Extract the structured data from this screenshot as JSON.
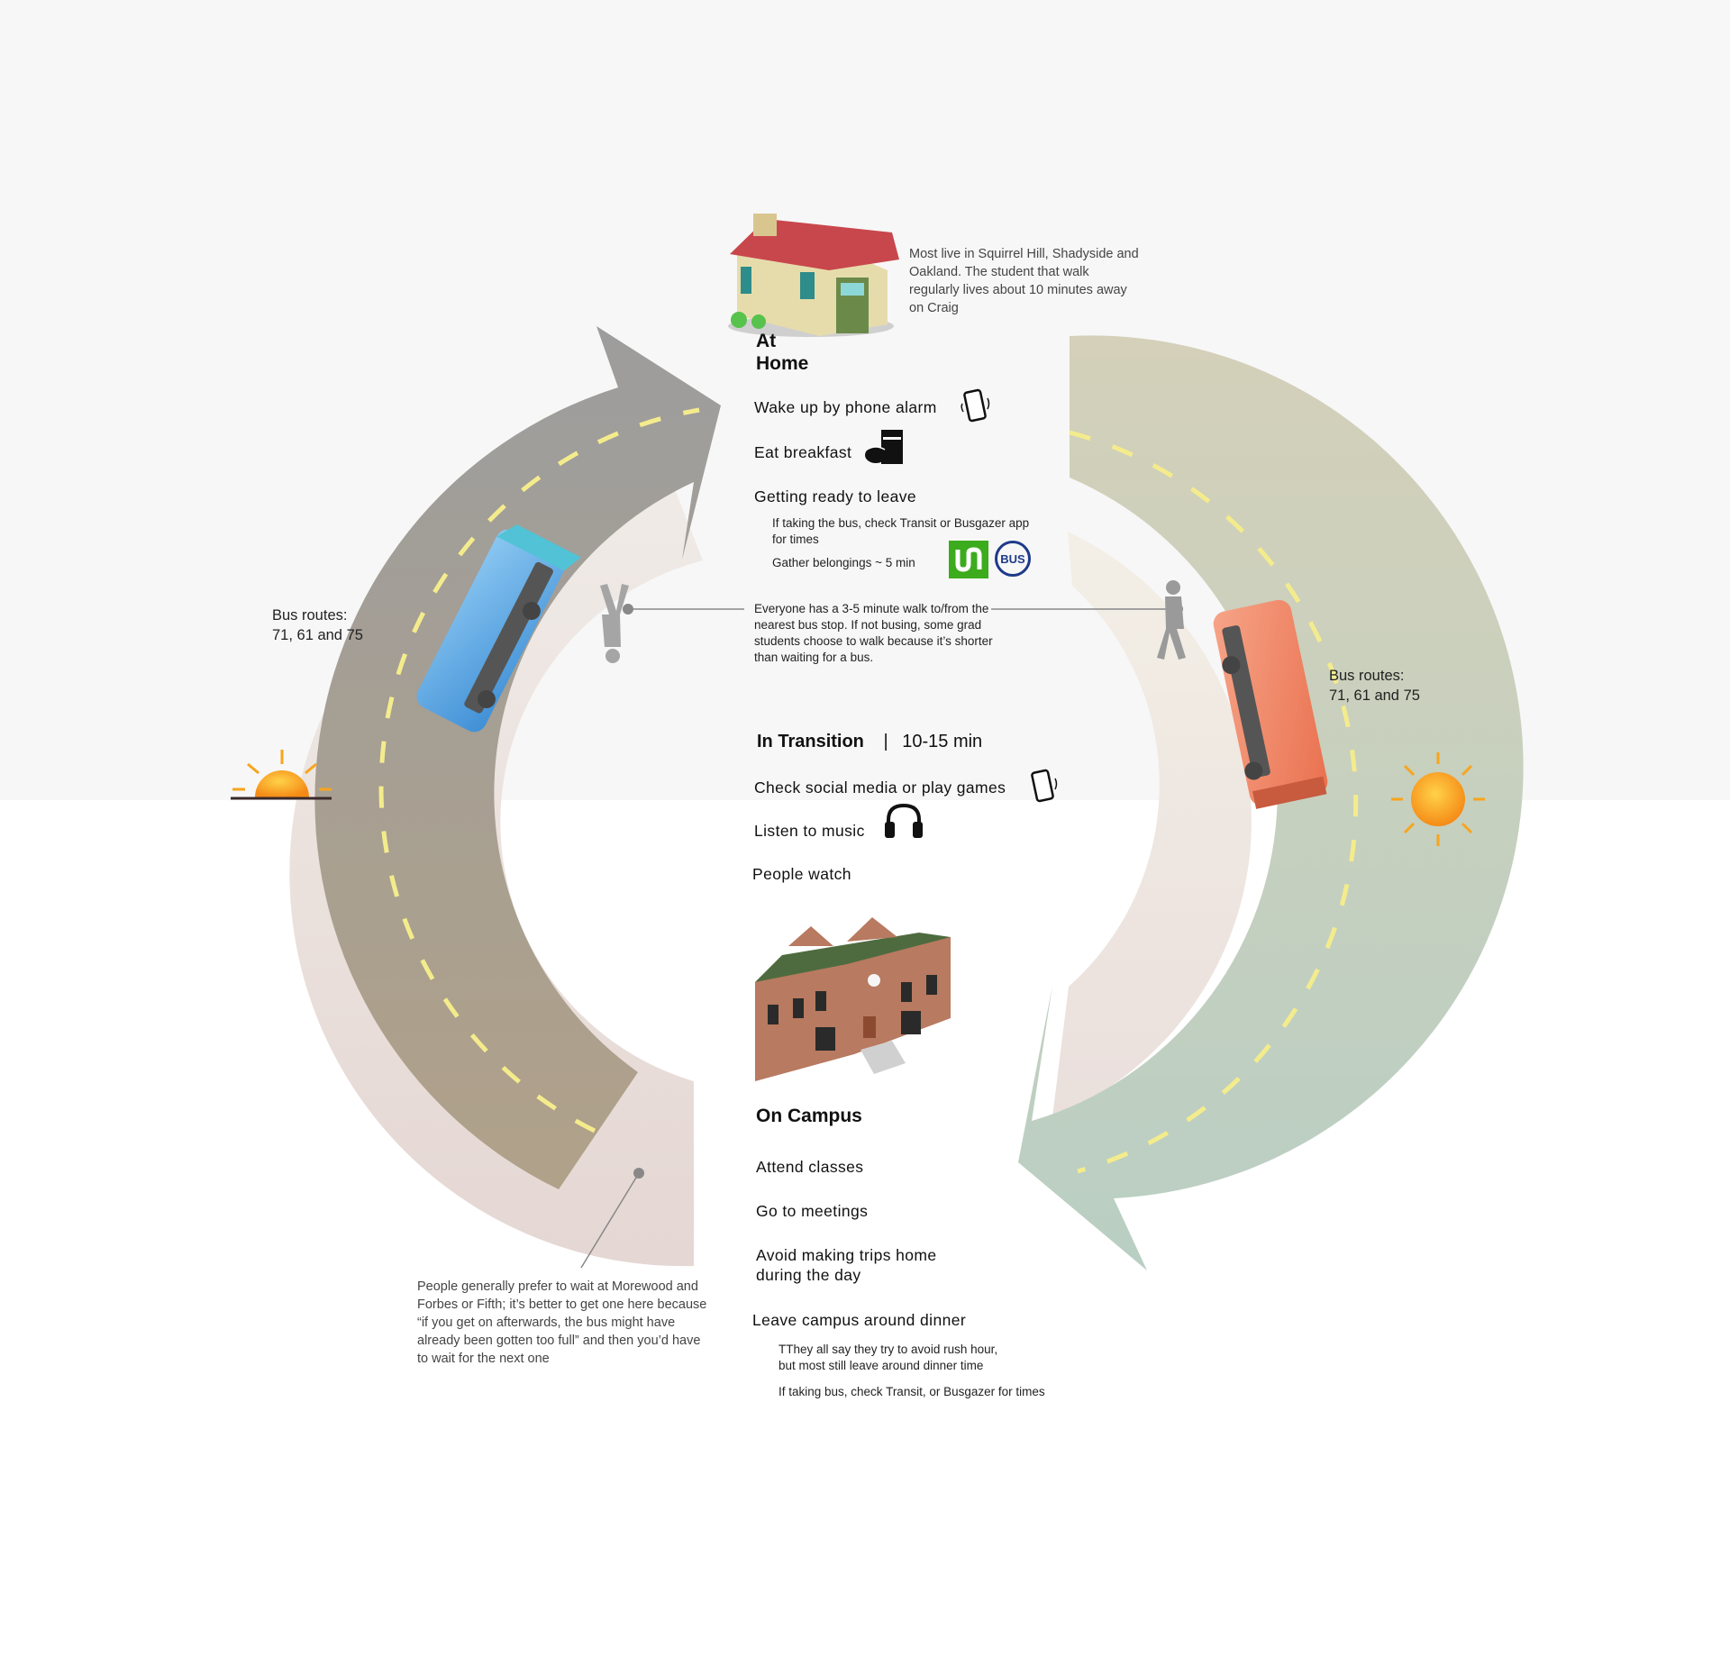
{
  "home": {
    "heading": "At Home",
    "note": "Most live in Squirrel Hill, Shadyside and Oakland. The student that walk regularly lives about 10 minutes away on Craig",
    "activities": [
      "Wake up by phone alarm",
      "Eat breakfast",
      "Getting ready to leave"
    ],
    "sub_notes": [
      "If taking the bus, check Transit or Busgazer app for times",
      "Gather belongings ~ 5 min"
    ],
    "app_icons": [
      "transit-app-icon",
      "busgazer-app-icon"
    ],
    "busgazer_label": "BUS"
  },
  "walk_note": "Everyone has a 3-5 minute walk to/from the nearest bus stop. If not busing, some grad students choose to walk because it’s shorter than waiting for a bus.",
  "routes": {
    "left": {
      "label": "Bus routes:",
      "value": "71, 61 and 75"
    },
    "right": {
      "label": "Bus routes:",
      "value": "71, 61 and 75"
    }
  },
  "transition": {
    "heading": "In Transition",
    "separator": "|",
    "duration": "10-15 min",
    "activities": [
      "Check social media or play games",
      "Listen to music",
      "People watch"
    ]
  },
  "campus": {
    "heading": "On Campus",
    "activities": [
      "Attend classes",
      "Go to meetings",
      "Avoid making trips home",
      "during the day",
      "Leave campus around dinner"
    ],
    "sub_notes": [
      "TThey all say they try to avoid rush hour,",
      "but most still leave around dinner time",
      "If taking bus, check Transit, or Busgazer for times"
    ]
  },
  "wait_note": "People generally prefer to wait at Morewood and Forbes or Fifth; it’s better to get one here because “if you get on afterwards, the bus might have already been gotten too full” and then you’d have to wait for the next one",
  "colors": {
    "top_background": "#f7f7f7",
    "left_bus": "#5aa9e6",
    "right_bus": "#f08060",
    "transit_green": "#3cab1d",
    "busgazer_blue": "#1e3a8a",
    "sun": "#f7a51c"
  },
  "icons": [
    "house-icon",
    "phone-icon",
    "breakfast-icon",
    "headphones-icon",
    "campus-building-icon",
    "sunrise-icon",
    "sun-icon",
    "walking-person-icon",
    "bus-icon"
  ]
}
